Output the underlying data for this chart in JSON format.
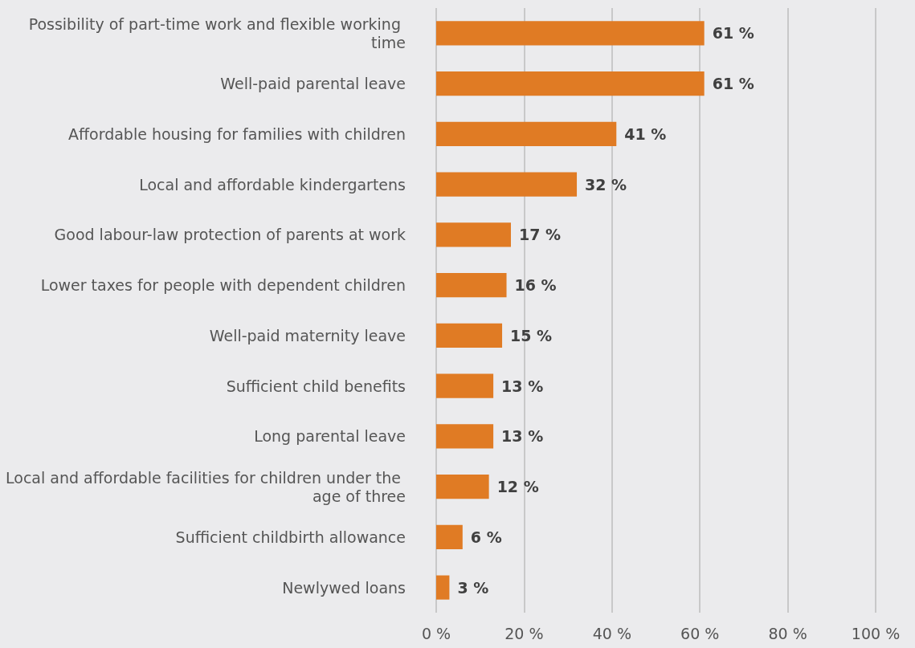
{
  "chart_data": {
    "type": "bar",
    "orientation": "horizontal",
    "categories": [
      "Possibility of part-time work and flexible working time",
      "Well-paid parental leave",
      "Affordable housing for families with children",
      "Local and affordable kindergartens",
      "Good labour-law protection of parents at work",
      "Lower taxes for people with dependent children",
      "Well-paid maternity leave",
      "Sufficient child benefits",
      "Long parental leave",
      "Local and affordable facilities for children under the age of three",
      "Sufficient childbirth allowance",
      "Newlywed loans"
    ],
    "values": [
      61,
      61,
      41,
      32,
      17,
      16,
      15,
      13,
      13,
      12,
      6,
      3
    ],
    "value_labels": [
      "61 %",
      "61 %",
      "41 %",
      "32 %",
      "17 %",
      "16 %",
      "15 %",
      "13 %",
      "13 %",
      "12 %",
      "6 %",
      "3 %"
    ],
    "color": "#e07b24",
    "xlim": [
      0,
      100
    ],
    "xticks": [
      {
        "value": 0,
        "label": "0 %"
      },
      {
        "value": 20,
        "label": "20 %"
      },
      {
        "value": 40,
        "label": "40 %"
      },
      {
        "value": 60,
        "label": "60 %"
      },
      {
        "value": 80,
        "label": "80 %"
      },
      {
        "value": 100,
        "label": "100 %"
      }
    ],
    "grid": "x"
  }
}
